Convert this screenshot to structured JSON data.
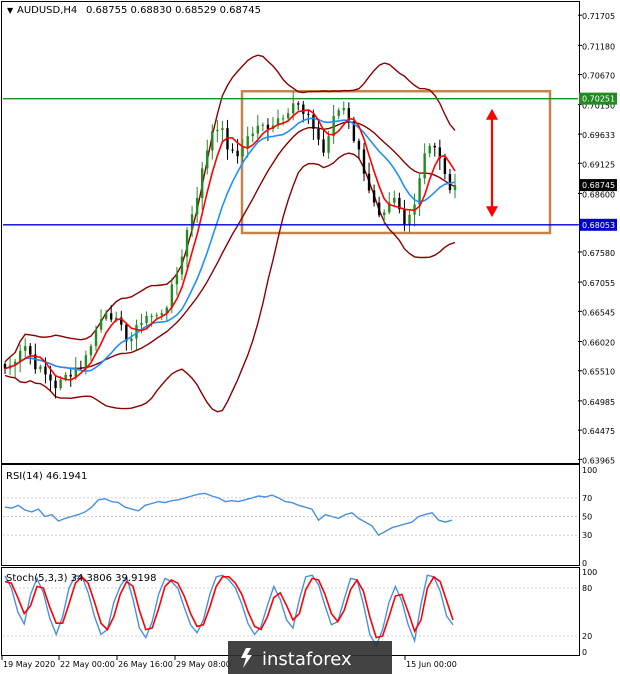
{
  "header": {
    "symbol": "AUDUSD,H4",
    "ohlc": "0.68755 0.68830 0.68529 0.68745"
  },
  "price_axis": {
    "ticks": [
      "0.71705",
      "0.71180",
      "0.70670",
      "0.70150",
      "0.69633",
      "0.69125",
      "0.68600",
      "0.68053",
      "0.67580",
      "0.67055",
      "0.66545",
      "0.66020",
      "0.65510",
      "0.64985",
      "0.64475",
      "0.63965"
    ],
    "badges": [
      {
        "label": "0.70251",
        "value": 0.70251,
        "color": "#228b22"
      },
      {
        "label": "0.68745",
        "value": 0.68745,
        "color": "#000000"
      },
      {
        "label": "0.68053",
        "value": 0.68053,
        "color": "#0000cd"
      }
    ]
  },
  "levels": [
    {
      "value": 0.70251,
      "color": "#228b22"
    },
    {
      "value": 0.68053,
      "color": "#0000cd"
    }
  ],
  "rsi": {
    "label": "RSI(14) 46.1941",
    "ticks": [
      "100",
      "70",
      "50",
      "30",
      "0"
    ],
    "color": "#4a8fe0"
  },
  "stoch": {
    "label": "Stoch(5,3,3) 34.3806 39.9198",
    "ticks": [
      "100",
      "80",
      "20",
      "0"
    ],
    "main_color": "#4a8fe0",
    "signal_color": "#ff0000"
  },
  "time_axis": [
    "19 May 2020",
    "22 May 00:00",
    "26 May 16:00",
    "29 May 08:00",
    "",
    "",
    "",
    "15 Jun 00:00"
  ],
  "watermark": "instaforex",
  "colors": {
    "bull_candle": "#228b22",
    "bear_candle": "#000000",
    "bollinger": "#8b0000",
    "ma_fast": "#ff0000",
    "ma_slow": "#1e90ff",
    "range_box": "#c8834a",
    "arrow": "#ff0000"
  },
  "chart_data": [
    {
      "type": "candlestick",
      "title": "AUDUSD,H4",
      "ylim": [
        0.6392,
        0.719
      ],
      "close_path": [
        0.6555,
        0.656,
        0.6585,
        0.66,
        0.658,
        0.656,
        0.6545,
        0.654,
        0.6525,
        0.653,
        0.6545,
        0.6555,
        0.656,
        0.6575,
        0.661,
        0.663,
        0.666,
        0.665,
        0.663,
        0.6615,
        0.6605,
        0.662,
        0.6645,
        0.665,
        0.664,
        0.6655,
        0.667,
        0.67,
        0.674,
        0.679,
        0.683,
        0.687,
        0.692,
        0.697,
        0.698,
        0.696,
        0.693,
        0.692,
        0.6945,
        0.696,
        0.697,
        0.6975,
        0.698,
        0.6985,
        0.6995,
        0.7005,
        0.702,
        0.701,
        0.699,
        0.6985,
        0.696,
        0.693,
        0.697,
        0.7,
        0.7015,
        0.699,
        0.695,
        0.692,
        0.688,
        0.684,
        0.681,
        0.682,
        0.685,
        0.683,
        0.68,
        0.683,
        0.687,
        0.693,
        0.695,
        0.694,
        0.69,
        0.687,
        0.6875
      ]
    },
    {
      "type": "line",
      "title": "RSI(14) 46.1941",
      "ylim": [
        0,
        100
      ],
      "values": [
        60,
        59,
        62,
        57,
        55,
        58,
        50,
        52,
        45,
        48,
        50,
        52,
        55,
        60,
        68,
        69,
        66,
        65,
        60,
        58,
        56,
        62,
        64,
        66,
        65,
        67,
        68,
        70,
        72,
        74,
        75,
        72,
        70,
        66,
        67,
        66,
        68,
        70,
        72,
        71,
        73,
        70,
        66,
        65,
        62,
        60,
        58,
        46,
        52,
        50,
        48,
        52,
        54,
        48,
        44,
        40,
        30,
        34,
        38,
        40,
        42,
        44,
        50,
        52,
        54,
        46,
        44,
        46
      ]
    },
    {
      "type": "line",
      "title": "Stoch(5,3,3) 34.3806 39.9198",
      "ylim": [
        0,
        100
      ],
      "series": [
        {
          "values": [
            95,
            80,
            50,
            35,
            72,
            92,
            74,
            42,
            22,
            44,
            80,
            95,
            95,
            74,
            44,
            22,
            28,
            62,
            82,
            94,
            66,
            30,
            18,
            38,
            72,
            92,
            88,
            80,
            56,
            34,
            24,
            40,
            72,
            94,
            96,
            90,
            80,
            60,
            35,
            22,
            32,
            58,
            82,
            66,
            40,
            30,
            66,
            94,
            96,
            84,
            58,
            34,
            38,
            66,
            92,
            90,
            60,
            22,
            8,
            28,
            62,
            82,
            64,
            34,
            14,
            60,
            96,
            94,
            76,
            45,
            34
          ]
        },
        {
          "values": [
            88,
            86,
            68,
            48,
            58,
            82,
            80,
            56,
            36,
            36,
            60,
            86,
            94,
            86,
            62,
            36,
            28,
            44,
            72,
            88,
            82,
            52,
            28,
            30,
            54,
            82,
            90,
            86,
            70,
            48,
            32,
            34,
            56,
            82,
            94,
            94,
            86,
            72,
            50,
            32,
            28,
            44,
            68,
            74,
            58,
            40,
            48,
            78,
            92,
            90,
            72,
            48,
            38,
            52,
            78,
            90,
            76,
            44,
            18,
            20,
            44,
            70,
            72,
            50,
            26,
            40,
            80,
            94,
            88,
            64,
            40
          ]
        }
      ]
    }
  ]
}
